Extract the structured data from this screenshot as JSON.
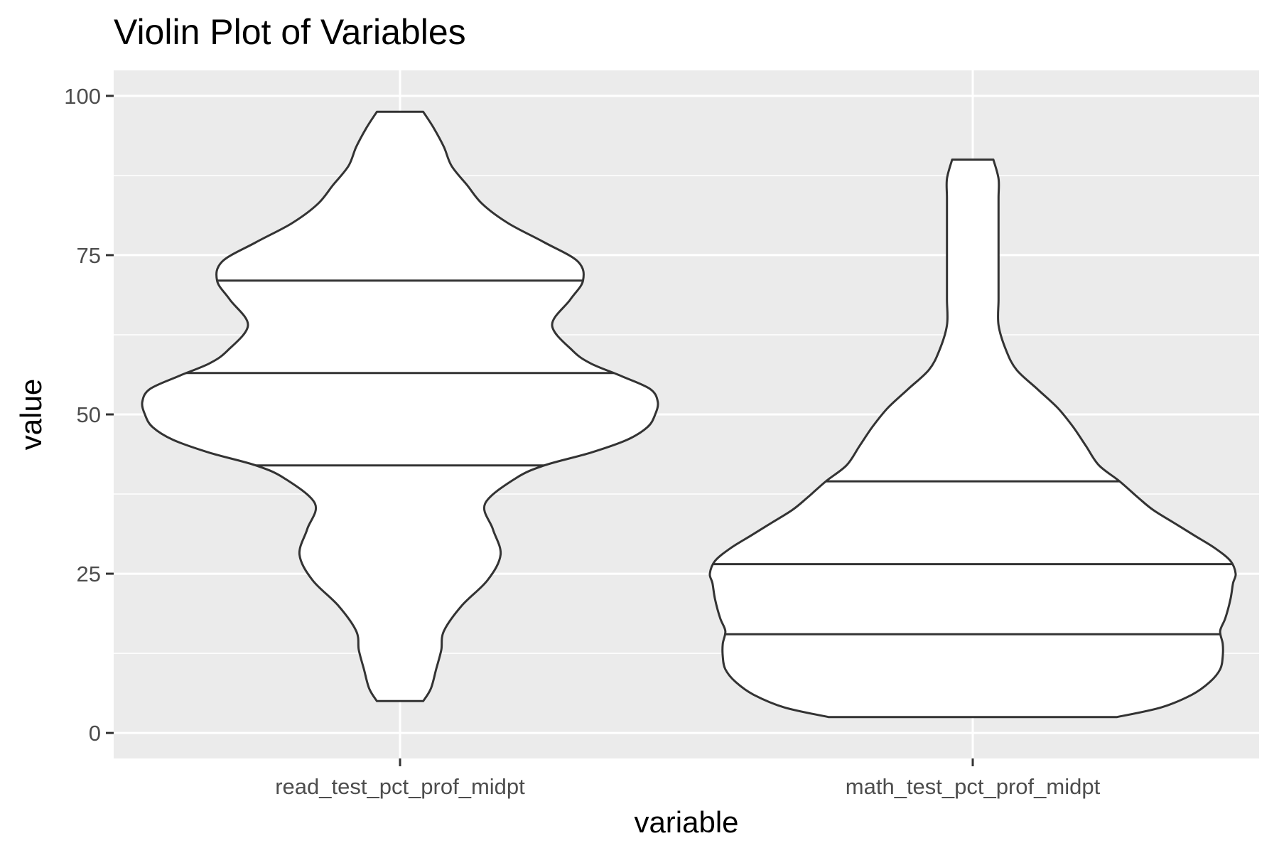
{
  "chart_data": {
    "type": "violin",
    "title": "Violin Plot of Variables",
    "xlabel": "variable",
    "ylabel": "value",
    "ylim": [
      -4,
      104
    ],
    "yticks": [
      0,
      25,
      50,
      75,
      100
    ],
    "yticklabels": [
      "0",
      "25",
      "50",
      "75",
      "100"
    ],
    "grid": true,
    "background": "#ebebeb",
    "categories": [
      "read_test_pct_prof_midpt",
      "math_test_pct_prof_midpt"
    ],
    "violins": [
      {
        "category": "read_test_pct_prof_midpt",
        "quantiles": {
          "q25": 42,
          "median": 56.5,
          "q75": 71
        },
        "y_min": 5,
        "y_max": 97.5,
        "density_profile": [
          [
            5,
            0.09
          ],
          [
            7,
            0.12
          ],
          [
            10,
            0.14
          ],
          [
            13,
            0.16
          ],
          [
            16,
            0.17
          ],
          [
            20,
            0.24
          ],
          [
            24,
            0.34
          ],
          [
            28,
            0.39
          ],
          [
            32,
            0.36
          ],
          [
            36,
            0.33
          ],
          [
            40,
            0.45
          ],
          [
            42,
            0.56
          ],
          [
            44,
            0.74
          ],
          [
            46,
            0.88
          ],
          [
            48,
            0.96
          ],
          [
            50,
            0.99
          ],
          [
            52,
            1.0
          ],
          [
            54,
            0.97
          ],
          [
            56,
            0.86
          ],
          [
            58,
            0.74
          ],
          [
            60,
            0.67
          ],
          [
            64,
            0.59
          ],
          [
            68,
            0.66
          ],
          [
            71,
            0.71
          ],
          [
            74,
            0.69
          ],
          [
            77,
            0.56
          ],
          [
            80,
            0.42
          ],
          [
            83,
            0.32
          ],
          [
            86,
            0.26
          ],
          [
            89,
            0.2
          ],
          [
            92,
            0.17
          ],
          [
            95,
            0.13
          ],
          [
            97.5,
            0.09
          ]
        ]
      },
      {
        "category": "math_test_pct_prof_midpt",
        "quantiles": {
          "q25": 15.5,
          "median": 26.5,
          "q75": 39.5
        },
        "y_min": 2.5,
        "y_max": 90,
        "density_profile": [
          [
            2.5,
            0.56
          ],
          [
            4,
            0.73
          ],
          [
            6,
            0.85
          ],
          [
            8,
            0.92
          ],
          [
            10,
            0.96
          ],
          [
            12,
            0.97
          ],
          [
            14,
            0.97
          ],
          [
            16,
            0.96
          ],
          [
            18,
            0.98
          ],
          [
            21,
            1.0
          ],
          [
            23.5,
            1.01
          ],
          [
            25,
            1.02
          ],
          [
            27,
            1.0
          ],
          [
            29,
            0.94
          ],
          [
            31,
            0.86
          ],
          [
            33,
            0.78
          ],
          [
            35,
            0.7
          ],
          [
            37,
            0.64
          ],
          [
            39.5,
            0.57
          ],
          [
            42,
            0.49
          ],
          [
            45,
            0.44
          ],
          [
            48,
            0.39
          ],
          [
            51,
            0.33
          ],
          [
            54,
            0.25
          ],
          [
            57,
            0.17
          ],
          [
            60,
            0.13
          ],
          [
            64,
            0.1
          ],
          [
            68,
            0.1
          ],
          [
            72,
            0.1
          ],
          [
            76,
            0.1
          ],
          [
            80,
            0.1
          ],
          [
            84,
            0.1
          ],
          [
            87,
            0.1
          ],
          [
            90,
            0.08
          ]
        ]
      }
    ]
  }
}
